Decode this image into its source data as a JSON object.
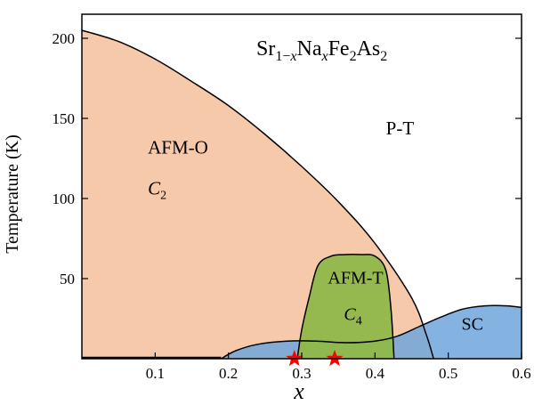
{
  "chart_data": {
    "type": "area",
    "title_parts": {
      "base1": "Sr",
      "sub1": "1−",
      "sub1_italic": "x",
      "base2": "Na",
      "sub2_italic": "x",
      "base3": "Fe",
      "sub3": "2",
      "base4": "As",
      "sub4": "2"
    },
    "xlabel": "x",
    "ylabel": "Temperature (K)",
    "xlim": [
      0.0,
      0.6
    ],
    "ylim": [
      0,
      215
    ],
    "xticks": [
      {
        "value": 0.1,
        "label": "0.1"
      },
      {
        "value": 0.2,
        "label": "0.2"
      },
      {
        "value": 0.3,
        "label": "0.3"
      },
      {
        "value": 0.4,
        "label": "0.4"
      },
      {
        "value": 0.5,
        "label": "0.5"
      },
      {
        "value": 0.6,
        "label": "0.6"
      }
    ],
    "yticks": [
      {
        "value": 50,
        "label": "50"
      },
      {
        "value": 100,
        "label": "100"
      },
      {
        "value": 150,
        "label": "150"
      },
      {
        "value": 200,
        "label": "200"
      }
    ],
    "regions": [
      {
        "name": "AFM-O",
        "symbol_base": "C",
        "symbol_sub": "2",
        "color": "#f6c9aa",
        "boundary": [
          [
            0.0,
            205
          ],
          [
            0.05,
            198
          ],
          [
            0.1,
            187
          ],
          [
            0.15,
            173
          ],
          [
            0.2,
            158
          ],
          [
            0.25,
            140
          ],
          [
            0.3,
            120
          ],
          [
            0.35,
            98
          ],
          [
            0.4,
            72
          ],
          [
            0.45,
            38
          ],
          [
            0.47,
            15
          ],
          [
            0.48,
            0
          ]
        ],
        "label_at": [
          0.09,
          128
        ]
      },
      {
        "name": "AFM-T",
        "symbol_base": "C",
        "symbol_sub": "4",
        "color": "#8fb84a",
        "boundary": [
          [
            0.294,
            0
          ],
          [
            0.3,
            18
          ],
          [
            0.31,
            38
          ],
          [
            0.322,
            58
          ],
          [
            0.34,
            64
          ],
          [
            0.36,
            65
          ],
          [
            0.38,
            65
          ],
          [
            0.4,
            64
          ],
          [
            0.415,
            55
          ],
          [
            0.422,
            30
          ],
          [
            0.426,
            0
          ]
        ],
        "label_at": [
          0.36,
          47
        ]
      },
      {
        "name": "SC",
        "color": "#6fa6dc",
        "boundary": [
          [
            0.19,
            0
          ],
          [
            0.21,
            5
          ],
          [
            0.24,
            9
          ],
          [
            0.28,
            11
          ],
          [
            0.32,
            11
          ],
          [
            0.36,
            10
          ],
          [
            0.4,
            11
          ],
          [
            0.43,
            14
          ],
          [
            0.46,
            20
          ],
          [
            0.49,
            26
          ],
          [
            0.52,
            31
          ],
          [
            0.55,
            33
          ],
          [
            0.58,
            33
          ],
          [
            0.6,
            32
          ]
        ],
        "label_at": [
          0.535,
          18
        ]
      }
    ],
    "phase_labels": [
      {
        "text": "P-T",
        "at": [
          0.415,
          140
        ]
      }
    ],
    "markers": [
      {
        "x": 0.29,
        "y": 0,
        "symbol": "star",
        "color": "#ff0000"
      },
      {
        "x": 0.345,
        "y": 0,
        "symbol": "star",
        "color": "#ff0000"
      }
    ]
  }
}
